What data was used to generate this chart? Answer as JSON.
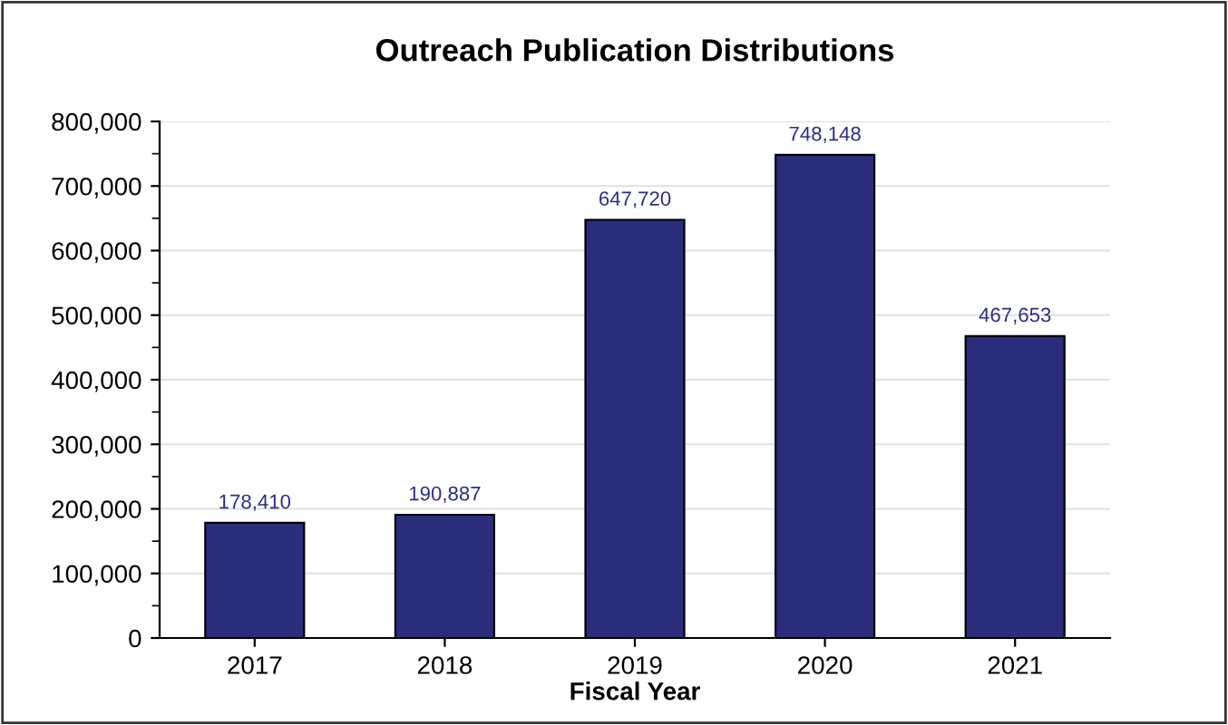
{
  "chart_data": {
    "type": "bar",
    "title": "Outreach Publication Distributions",
    "xlabel": "Fiscal Year",
    "categories": [
      "2017",
      "2018",
      "2019",
      "2020",
      "2021"
    ],
    "values": [
      178410,
      190887,
      647720,
      748148,
      467653
    ],
    "value_labels": [
      "178,410",
      "190,887",
      "647,720",
      "748,148",
      "467,653"
    ],
    "color": "#2b2d7c",
    "ylim": [
      0,
      800000
    ],
    "yticks": [
      0,
      {
        "value": 50000,
        "label": null
      },
      {
        "value": 100000,
        "label": "100,000"
      },
      {
        "value": 150000,
        "label": null
      },
      {
        "value": 200000,
        "label": "200,000"
      },
      {
        "value": 250000,
        "label": null
      },
      {
        "value": 300000,
        "label": "300,000"
      },
      {
        "value": 350000,
        "label": null
      },
      {
        "value": 400000,
        "label": "400,000"
      },
      {
        "value": 450000,
        "label": null
      },
      {
        "value": 500000,
        "label": "500,000"
      },
      {
        "value": 550000,
        "label": null
      },
      {
        "value": 600000,
        "label": "600,000"
      },
      {
        "value": 650000,
        "label": null
      },
      {
        "value": 700000,
        "label": "700,000"
      },
      {
        "value": 750000,
        "label": null
      },
      {
        "value": 800000,
        "label": "800,000"
      }
    ],
    "grid": "y",
    "legend": false
  }
}
